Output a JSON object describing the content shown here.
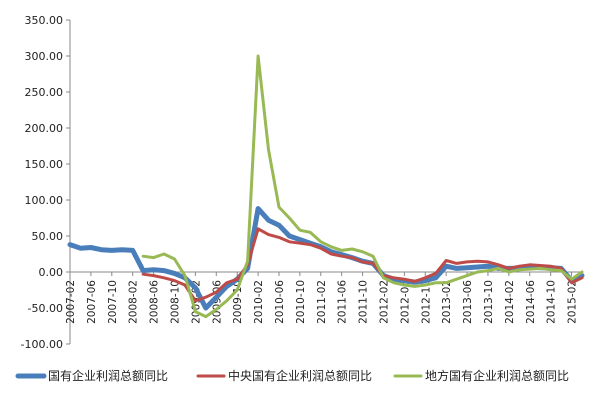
{
  "chart_data": {
    "type": "line",
    "title": "",
    "xlabel": "",
    "ylabel": "",
    "ylim": [
      -100,
      350
    ],
    "yticks": [
      "350.00",
      "300.00",
      "250.00",
      "200.00",
      "150.00",
      "100.00",
      "50.00",
      "0.00",
      "-50.00",
      "-100.00"
    ],
    "x": [
      "2007-02",
      "2007-04",
      "2007-06",
      "2007-08",
      "2007-10",
      "2007-12",
      "2008-02",
      "2008-04",
      "2008-06",
      "2008-08",
      "2008-10",
      "2008-12",
      "2009-02",
      "2009-04",
      "2009-06",
      "2009-08",
      "2009-10",
      "2009-12",
      "2010-02",
      "2010-04",
      "2010-06",
      "2010-08",
      "2010-10",
      "2010-12",
      "2011-02",
      "2011-04",
      "2011-06",
      "2011-08",
      "2011-10",
      "2011-12",
      "2012-02",
      "2012-04",
      "2012-06",
      "2012-08",
      "2012-10",
      "2012-12",
      "2013-02",
      "2013-04",
      "2013-06",
      "2013-08",
      "2013-10",
      "2013-12",
      "2014-02",
      "2014-04",
      "2014-06",
      "2014-08",
      "2014-10",
      "2014-12",
      "2015-02",
      "2015-04"
    ],
    "xticklabels": [
      "2007-02",
      "2007-06",
      "2007-10",
      "2008-02",
      "2008-06",
      "2008-10",
      "2009-02",
      "2009-06",
      "2009-10",
      "2010-02",
      "2010-06",
      "2010-10",
      "2011-02",
      "2011-06",
      "2011-10",
      "2012-02",
      "2012-06",
      "2012-10",
      "2013-02",
      "2013-06",
      "2013-10",
      "2014-02",
      "2014-06",
      "2014-10",
      "2015-02"
    ],
    "grid": false,
    "legend_position": "bottom",
    "series": [
      {
        "name": "国有企业利润总额同比",
        "color": "#4a7ebb",
        "values": [
          38,
          33,
          34,
          31,
          30,
          31,
          30,
          2,
          3,
          2,
          -2,
          -8,
          -22,
          -50,
          -35,
          -20,
          -10,
          5,
          88,
          72,
          65,
          50,
          45,
          40,
          35,
          28,
          24,
          20,
          15,
          12,
          -5,
          -10,
          -12,
          -14,
          -12,
          -8,
          8,
          5,
          6,
          7,
          8,
          5,
          5,
          5,
          7,
          6,
          6,
          5,
          -12,
          -5
        ]
      },
      {
        "name": "中央国有企业利润总额同比",
        "color": "#be4b48",
        "values": [
          null,
          null,
          null,
          null,
          null,
          null,
          null,
          -3,
          -5,
          -8,
          -12,
          -18,
          -40,
          -35,
          -28,
          -15,
          -10,
          10,
          60,
          52,
          48,
          42,
          40,
          38,
          33,
          25,
          22,
          20,
          14,
          12,
          -5,
          -8,
          -10,
          -13,
          -8,
          -2,
          16,
          12,
          14,
          15,
          14,
          10,
          5,
          8,
          10,
          9,
          8,
          5,
          -15,
          -8
        ]
      },
      {
        "name": "地方国有企业利润总额同比",
        "color": "#98b954",
        "values": [
          null,
          null,
          null,
          null,
          null,
          null,
          null,
          22,
          20,
          25,
          18,
          -5,
          -55,
          -62,
          -52,
          -40,
          -25,
          15,
          300,
          170,
          90,
          75,
          58,
          55,
          42,
          35,
          30,
          32,
          28,
          22,
          -8,
          -15,
          -18,
          -20,
          -18,
          -15,
          -15,
          -10,
          -5,
          0,
          2,
          5,
          0,
          3,
          4,
          5,
          3,
          2,
          -10,
          0
        ]
      }
    ]
  }
}
